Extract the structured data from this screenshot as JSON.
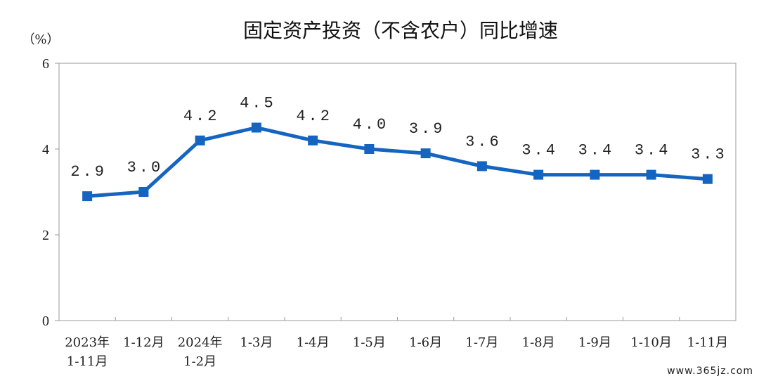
{
  "chart_data": {
    "type": "line",
    "title": "固定资产投资（不含农户）同比增速",
    "unit_label": "（%）",
    "ylim": [
      0,
      6
    ],
    "yticks": [
      "0",
      "2",
      "4",
      "6"
    ],
    "grid": false,
    "line_color": "#1565C0",
    "categories": [
      [
        "2023年",
        "1-11月"
      ],
      [
        "1-12月"
      ],
      [
        "2024年",
        "1-2月"
      ],
      [
        "1-3月"
      ],
      [
        "1-4月"
      ],
      [
        "1-5月"
      ],
      [
        "1-6月"
      ],
      [
        "1-7月"
      ],
      [
        "1-8月"
      ],
      [
        "1-9月"
      ],
      [
        "1-10月"
      ],
      [
        "1-11月"
      ]
    ],
    "values": [
      2.9,
      3.0,
      4.2,
      4.5,
      4.2,
      4.0,
      3.9,
      3.6,
      3.4,
      3.4,
      3.4,
      3.3
    ],
    "value_labels": [
      "2.9",
      "3.0",
      "4.2",
      "4.5",
      "4.2",
      "4.0",
      "3.9",
      "3.6",
      "3.4",
      "3.4",
      "3.4",
      "3.3"
    ]
  },
  "watermark": "www.365jz.com"
}
